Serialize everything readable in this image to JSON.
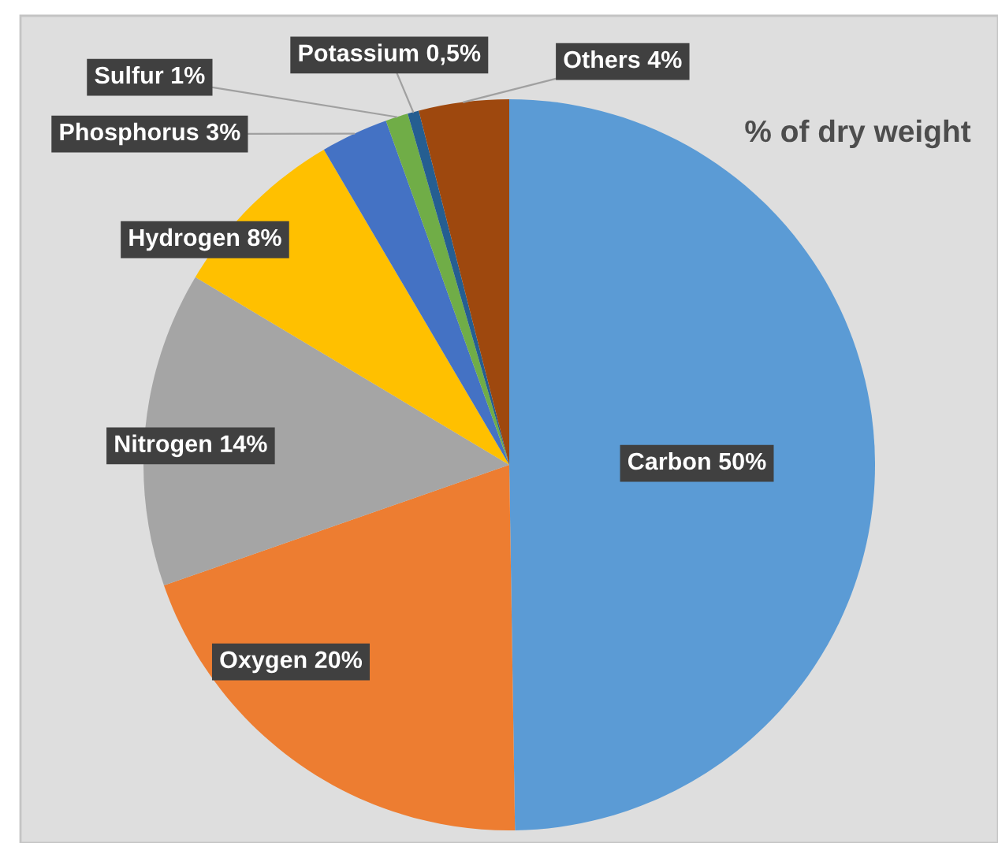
{
  "chart_data": {
    "type": "pie",
    "title": "% of dry weight",
    "categories": [
      "Carbon",
      "Oxygen",
      "Nitrogen",
      "Hydrogen",
      "Phosphorus",
      "Sulfur",
      "Potassium",
      "Others"
    ],
    "values": [
      50,
      20,
      14,
      8,
      3,
      1,
      0.5,
      4
    ],
    "colors": [
      "#5b9bd5",
      "#ed7d31",
      "#a5a5a5",
      "#ffc000",
      "#4472c4",
      "#70ad47",
      "#255e91",
      "#9e480e"
    ],
    "value_labels": [
      "50%",
      "20%",
      "14%",
      "8%",
      "3%",
      "1%",
      "0,5%",
      "4%"
    ]
  }
}
